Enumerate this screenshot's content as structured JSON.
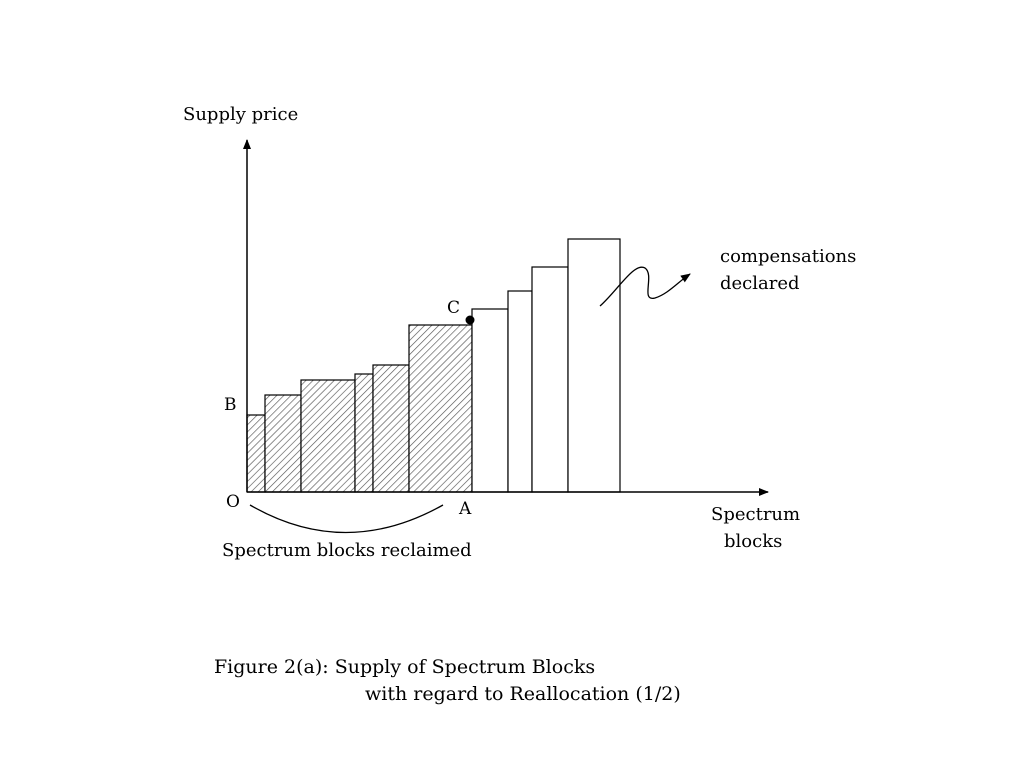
{
  "axes": {
    "y_label": "Supply price",
    "x_label_line1": "Spectrum",
    "x_label_line2": "blocks"
  },
  "points": {
    "origin": "O",
    "a": "A",
    "b": "B",
    "c": "C"
  },
  "annotations": {
    "reclaimed": "Spectrum blocks reclaimed",
    "compensations_line1": "compensations",
    "compensations_line2": "declared"
  },
  "caption": {
    "line1": "Figure 2(a): Supply of Spectrum Blocks",
    "line2": "with regard to Reallocation (1/2)"
  },
  "chart_data": {
    "type": "bar",
    "title": "",
    "xlabel": "Spectrum blocks",
    "ylabel": "Supply price",
    "blocks": [
      {
        "width": 18,
        "price": 77,
        "reclaimed": true
      },
      {
        "width": 36,
        "price": 97,
        "reclaimed": true
      },
      {
        "width": 54,
        "price": 112,
        "reclaimed": true
      },
      {
        "width": 18,
        "price": 118,
        "reclaimed": true
      },
      {
        "width": 36,
        "price": 127,
        "reclaimed": true
      },
      {
        "width": 63,
        "price": 167,
        "reclaimed": true
      },
      {
        "width": 36,
        "price": 183,
        "reclaimed": false
      },
      {
        "width": 24,
        "price": 201,
        "reclaimed": false
      },
      {
        "width": 36,
        "price": 225,
        "reclaimed": false
      },
      {
        "width": 52,
        "price": 253,
        "reclaimed": false
      }
    ]
  }
}
